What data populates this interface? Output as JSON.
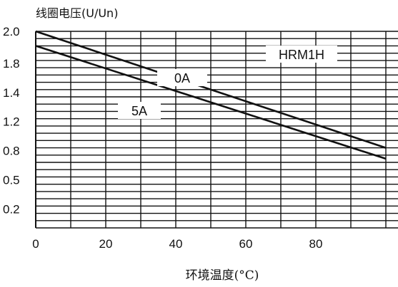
{
  "chart_data": {
    "type": "line",
    "ylabel": "线圈电压(U/Un)",
    "xlabel": "环境温度(°C)",
    "model_label": "HRM1H",
    "y_tick_labels": [
      "2.0",
      "1.8",
      "1.4",
      "1.2",
      "0.8",
      "0.5",
      "0.2"
    ],
    "x_ticks": [
      0,
      20,
      40,
      60,
      80
    ],
    "xlim": [
      0,
      100
    ],
    "grid": true,
    "series": [
      {
        "name": "0A",
        "x": [
          0,
          100
        ],
        "y": [
          "2.0",
          "0.8"
        ]
      },
      {
        "name": "5A",
        "x": [
          0,
          100
        ],
        "y": [
          "1.9",
          "0.7"
        ]
      }
    ],
    "colors": {
      "line": "#111111",
      "grid": "#111111",
      "background": "#ffffff"
    }
  }
}
